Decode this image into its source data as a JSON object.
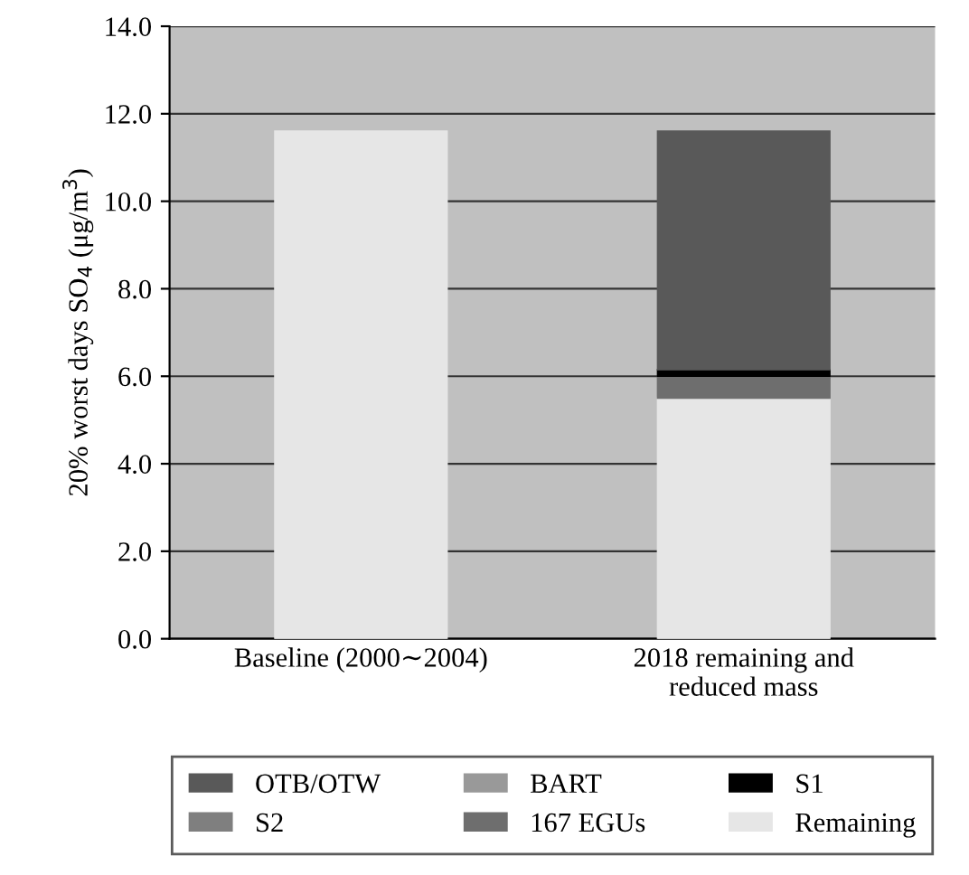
{
  "chart_data": {
    "type": "bar",
    "stacked": true,
    "ylabel": "20% worst days SO$_{4}$ (μg/m$^{3}$)",
    "categories": [
      "Baseline (2000∼2004)",
      "2018 remaining and\nreduced mass"
    ],
    "series": [
      {
        "name": "Remaining",
        "color": "#e6e6e6",
        "values": [
          11.6,
          5.5
        ]
      },
      {
        "name": "167 EGUs",
        "color": "#6e6e6e",
        "values": [
          null,
          0.5
        ]
      },
      {
        "name": "S2",
        "color": "#7f7f7f",
        "values": [
          null,
          null
        ]
      },
      {
        "name": "S1",
        "color": "#000000",
        "values": [
          null,
          0.15
        ]
      },
      {
        "name": "BART",
        "color": "#999999",
        "values": [
          null,
          null
        ]
      },
      {
        "name": "OTB/OTW",
        "color": "#595959",
        "values": [
          null,
          5.45
        ]
      }
    ],
    "ylim": [
      0,
      14
    ],
    "yticks": [
      {
        "value": 0,
        "label": "0.0"
      },
      {
        "value": 2,
        "label": "2.0"
      },
      {
        "value": 4,
        "label": "4.0"
      },
      {
        "value": 6,
        "label": "6.0"
      },
      {
        "value": 8,
        "label": "8.0"
      },
      {
        "value": 10,
        "label": "10.0"
      },
      {
        "value": 12,
        "label": "12.0"
      },
      {
        "value": 14,
        "label": "14.0"
      }
    ],
    "grid": "y",
    "legend": "bottom"
  }
}
